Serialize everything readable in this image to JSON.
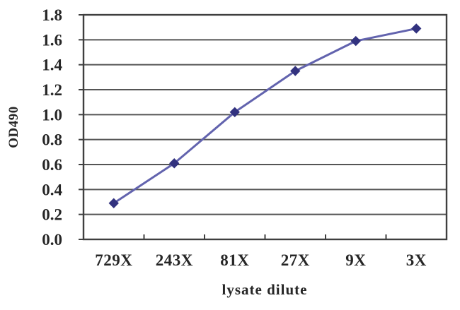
{
  "chart_data": {
    "type": "line",
    "title": "",
    "xlabel": "lysate dilute",
    "ylabel": "OD490",
    "categories": [
      "729X",
      "243X",
      "81X",
      "27X",
      "9X",
      "3X"
    ],
    "series": [
      {
        "name": "OD490",
        "values": [
          0.29,
          0.61,
          1.02,
          1.35,
          1.59,
          1.69
        ]
      }
    ],
    "ylim": [
      0,
      1.8
    ],
    "ytick_step": 0.2,
    "ytick_labels": [
      "0.0",
      "0.2",
      "0.4",
      "0.6",
      "0.8",
      "1.0",
      "1.2",
      "1.4",
      "1.6",
      "1.8"
    ],
    "grid": "horizontal",
    "legend_position": "none",
    "marker_shape": "diamond",
    "colors": {
      "line": "#6263ae",
      "marker": "#32327f",
      "gridline": "#555555",
      "axis_border": "#3f3f3f",
      "text": "#262626",
      "background": "#ffffff"
    }
  }
}
